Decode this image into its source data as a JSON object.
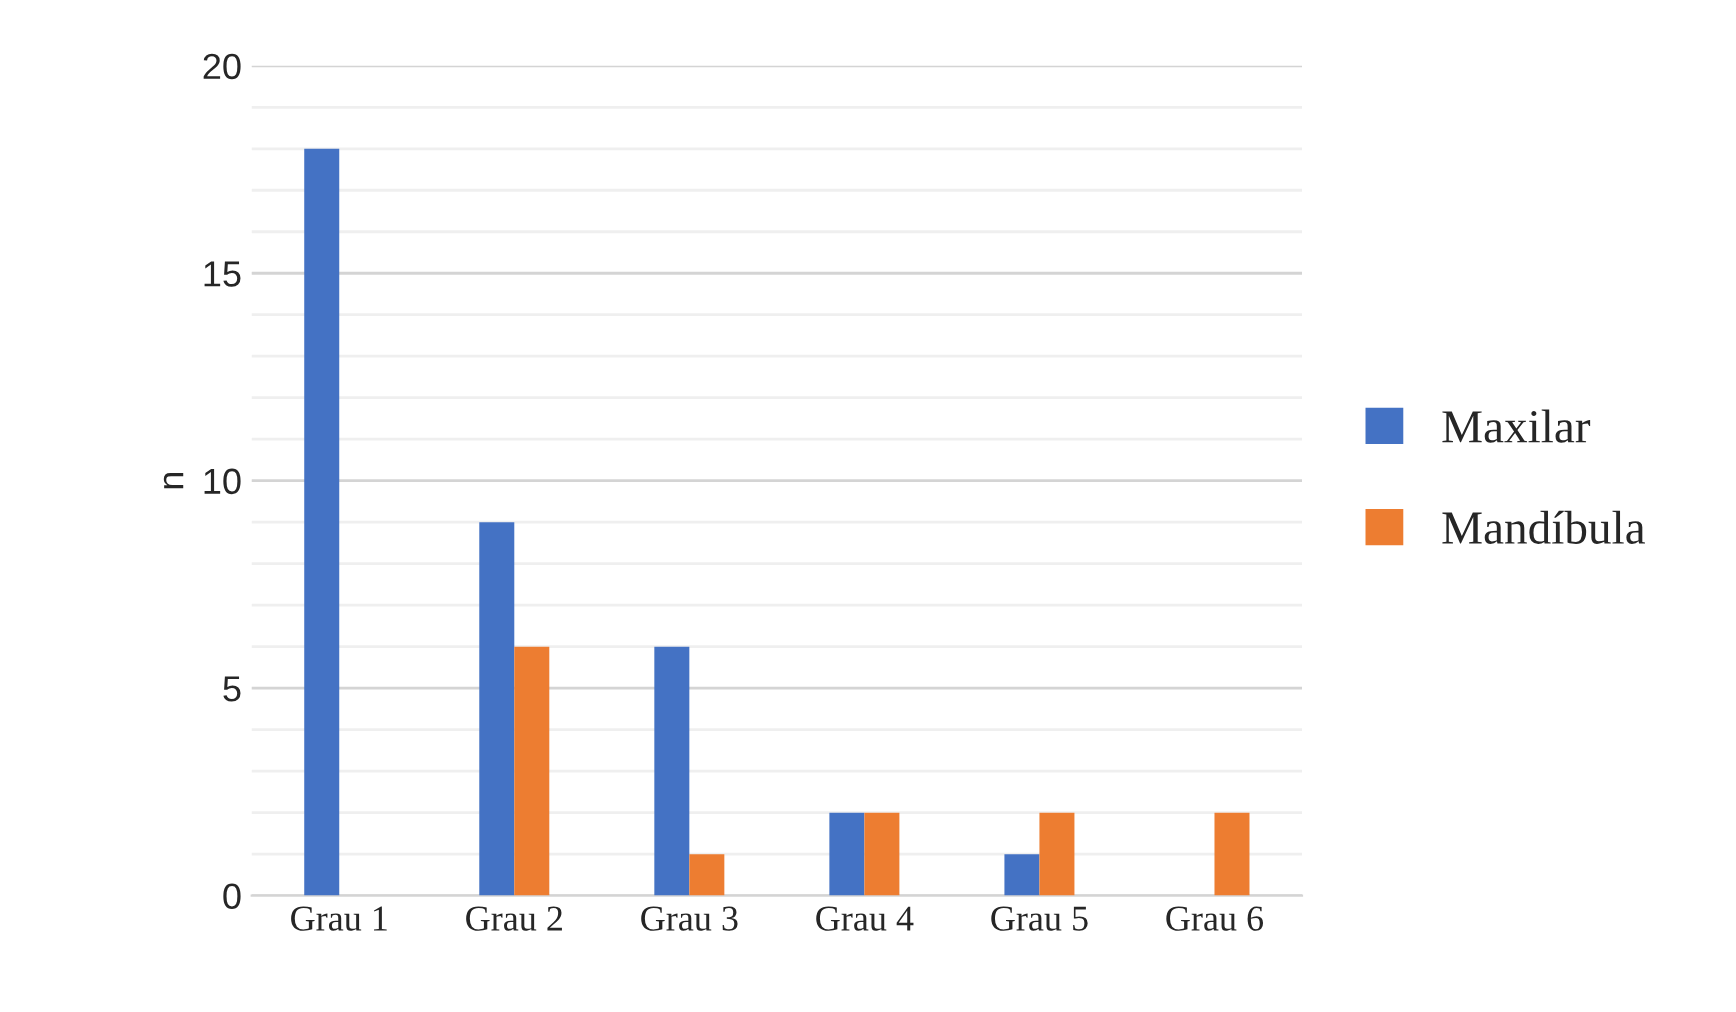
{
  "chart_data": {
    "type": "bar",
    "ylabel": "n",
    "categories": [
      "Grau 1",
      "Grau 2",
      "Grau 3",
      "Grau 4",
      "Grau 5",
      "Grau 6"
    ],
    "series": [
      {
        "name": "Maxilar",
        "color": "#4472c4",
        "values": [
          18,
          9,
          6,
          2,
          1,
          null
        ]
      },
      {
        "name": "Mandíbula",
        "color": "#ed7d31",
        "values": [
          null,
          6,
          1,
          2,
          2,
          2
        ]
      }
    ],
    "ylim": [
      0,
      20
    ],
    "yticks": [
      0,
      {
        "value": 1,
        "label": null
      },
      {
        "value": 2,
        "label": null
      },
      {
        "value": 3,
        "label": null
      },
      {
        "value": 4,
        "label": null
      },
      5,
      {
        "value": 6,
        "label": null
      },
      {
        "value": 7,
        "label": null
      },
      {
        "value": 8,
        "label": null
      },
      {
        "value": 9,
        "label": null
      },
      10,
      {
        "value": 11,
        "label": null
      },
      {
        "value": 12,
        "label": null
      },
      {
        "value": 13,
        "label": null
      },
      {
        "value": 14,
        "label": null
      },
      15,
      {
        "value": 16,
        "label": null
      },
      {
        "value": 17,
        "label": null
      },
      {
        "value": 18,
        "label": null
      },
      {
        "value": 19,
        "label": null
      },
      20
    ],
    "grid": "y",
    "legend": "right"
  }
}
